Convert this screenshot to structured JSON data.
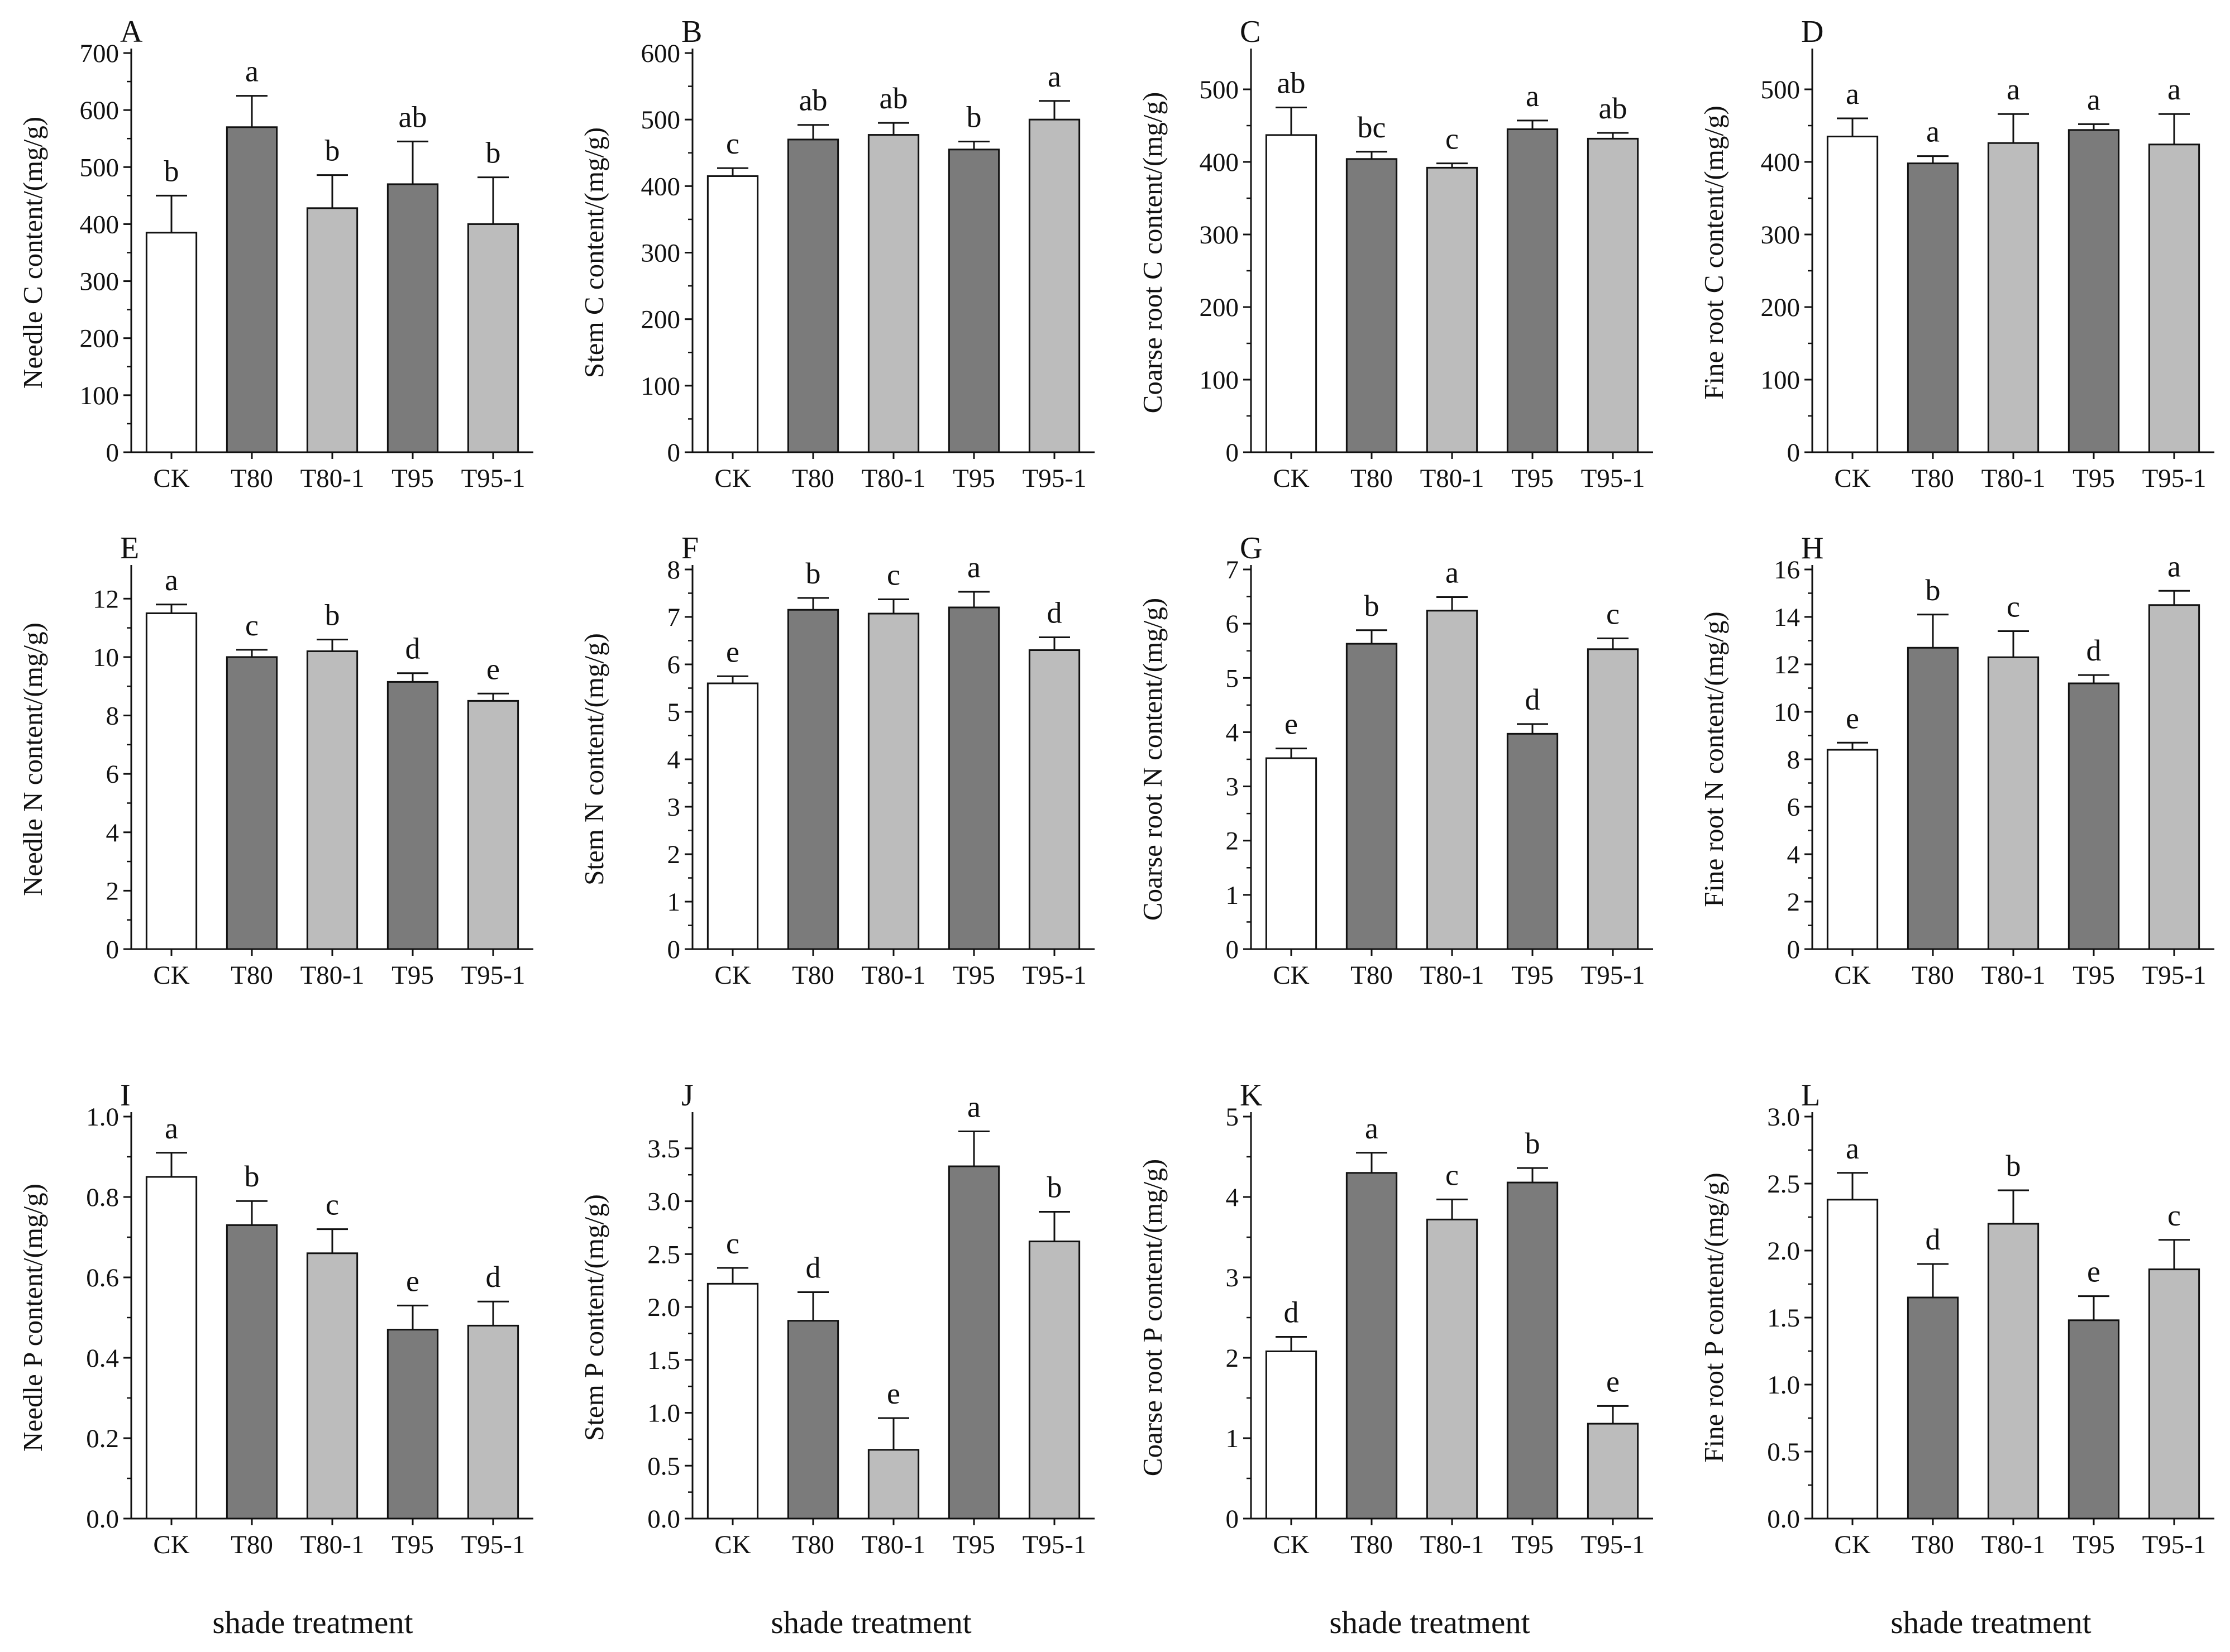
{
  "figure": {
    "bottom_labels": [
      "shade treatment",
      "shade treatment",
      "shade treatment",
      "shade treatment"
    ],
    "colors": {
      "CK": "#ffffff",
      "T80": "#7b7b7b",
      "T80-1": "#bcbcbc",
      "T95": "#7b7b7b",
      "T95-1": "#bcbcbc",
      "axis": "#111111"
    }
  },
  "chart_data": [
    {
      "panel": "A",
      "type": "bar",
      "categories": [
        "CK",
        "T80",
        "T80-1",
        "T95",
        "T95-1"
      ],
      "values": [
        385,
        570,
        428,
        470,
        400
      ],
      "errors": [
        65,
        55,
        58,
        75,
        82
      ],
      "letters": [
        "b",
        "a",
        "b",
        "ab",
        "b"
      ],
      "ylabel": "Needle C content/(mg/g)",
      "ylim": [
        0,
        700
      ],
      "yticks": [
        0,
        100,
        200,
        300,
        400,
        500,
        600,
        700
      ],
      "ytick_labels": [
        "0",
        "100",
        "200",
        "300",
        "400",
        "500",
        "600",
        "700"
      ]
    },
    {
      "panel": "B",
      "type": "bar",
      "categories": [
        "CK",
        "T80",
        "T80-1",
        "T95",
        "T95-1"
      ],
      "values": [
        415,
        470,
        477,
        455,
        500
      ],
      "errors": [
        12,
        22,
        18,
        12,
        28
      ],
      "letters": [
        "c",
        "ab",
        "ab",
        "b",
        "a"
      ],
      "ylabel": "Stem C content/(mg/g)",
      "ylim": [
        0,
        600
      ],
      "yticks": [
        0,
        100,
        200,
        300,
        400,
        500,
        600
      ],
      "ytick_labels": [
        "0",
        "100",
        "200",
        "300",
        "400",
        "500",
        "600"
      ]
    },
    {
      "panel": "C",
      "type": "bar",
      "categories": [
        "CK",
        "T80",
        "T80-1",
        "T95",
        "T95-1"
      ],
      "values": [
        437,
        404,
        392,
        445,
        432
      ],
      "errors": [
        38,
        10,
        6,
        12,
        8
      ],
      "letters": [
        "ab",
        "bc",
        "c",
        "a",
        "ab"
      ],
      "ylabel": "Coarse root C content/(mg/g)",
      "ylim": [
        0,
        550
      ],
      "yticks": [
        0,
        100,
        200,
        300,
        400,
        500
      ],
      "ytick_labels": [
        "0",
        "100",
        "200",
        "300",
        "400",
        "500"
      ]
    },
    {
      "panel": "D",
      "type": "bar",
      "categories": [
        "CK",
        "T80",
        "T80-1",
        "T95",
        "T95-1"
      ],
      "values": [
        435,
        398,
        426,
        444,
        424
      ],
      "errors": [
        25,
        10,
        40,
        8,
        42
      ],
      "letters": [
        "a",
        "a",
        "a",
        "a",
        "a"
      ],
      "ylabel": "Fine root C content/(mg/g)",
      "ylim": [
        0,
        550
      ],
      "yticks": [
        0,
        100,
        200,
        300,
        400,
        500
      ],
      "ytick_labels": [
        "0",
        "100",
        "200",
        "300",
        "400",
        "500"
      ]
    },
    {
      "panel": "E",
      "type": "bar",
      "categories": [
        "CK",
        "T80",
        "T80-1",
        "T95",
        "T95-1"
      ],
      "values": [
        11.5,
        10.0,
        10.2,
        9.15,
        8.5
      ],
      "errors": [
        0.3,
        0.25,
        0.4,
        0.3,
        0.25
      ],
      "letters": [
        "a",
        "c",
        "b",
        "d",
        "e"
      ],
      "ylabel": "Needle N content/(mg/g)",
      "ylim": [
        0,
        13
      ],
      "yticks": [
        0,
        2,
        4,
        6,
        8,
        10,
        12
      ],
      "ytick_labels": [
        "0",
        "2",
        "4",
        "6",
        "8",
        "10",
        "12"
      ]
    },
    {
      "panel": "F",
      "type": "bar",
      "categories": [
        "CK",
        "T80",
        "T80-1",
        "T95",
        "T95-1"
      ],
      "values": [
        5.6,
        7.15,
        7.07,
        7.2,
        6.3
      ],
      "errors": [
        0.15,
        0.25,
        0.3,
        0.33,
        0.27
      ],
      "letters": [
        "e",
        "b",
        "c",
        "a",
        "d"
      ],
      "ylabel": "Stem N content/(mg/g)",
      "ylim": [
        0,
        8
      ],
      "yticks": [
        0,
        1,
        2,
        3,
        4,
        5,
        6,
        7,
        8
      ],
      "ytick_labels": [
        "0",
        "1",
        "2",
        "3",
        "4",
        "5",
        "6",
        "7",
        "8"
      ]
    },
    {
      "panel": "G",
      "type": "bar",
      "categories": [
        "CK",
        "T80",
        "T80-1",
        "T95",
        "T95-1"
      ],
      "values": [
        3.52,
        5.63,
        6.24,
        3.97,
        5.53
      ],
      "errors": [
        0.18,
        0.25,
        0.25,
        0.18,
        0.2
      ],
      "letters": [
        "e",
        "b",
        "a",
        "d",
        "c"
      ],
      "ylabel": "Coarse root N content/(mg/g)",
      "ylim": [
        0,
        7
      ],
      "yticks": [
        0,
        1,
        2,
        3,
        4,
        5,
        6,
        7
      ],
      "ytick_labels": [
        "0",
        "1",
        "2",
        "3",
        "4",
        "5",
        "6",
        "7"
      ]
    },
    {
      "panel": "H",
      "type": "bar",
      "categories": [
        "CK",
        "T80",
        "T80-1",
        "T95",
        "T95-1"
      ],
      "values": [
        8.4,
        12.7,
        12.3,
        11.2,
        14.5
      ],
      "errors": [
        0.3,
        1.4,
        1.1,
        0.35,
        0.6
      ],
      "letters": [
        "e",
        "b",
        "c",
        "d",
        "a"
      ],
      "ylabel": "Fine root N content/(mg/g)",
      "ylim": [
        0,
        16
      ],
      "yticks": [
        0,
        2,
        4,
        6,
        8,
        10,
        12,
        14,
        16
      ],
      "ytick_labels": [
        "0",
        "2",
        "4",
        "6",
        "8",
        "10",
        "12",
        "14",
        "16"
      ]
    },
    {
      "panel": "I",
      "type": "bar",
      "categories": [
        "CK",
        "T80",
        "T80-1",
        "T95",
        "T95-1"
      ],
      "values": [
        0.85,
        0.73,
        0.66,
        0.47,
        0.48
      ],
      "errors": [
        0.06,
        0.06,
        0.06,
        0.06,
        0.06
      ],
      "letters": [
        "a",
        "b",
        "c",
        "e",
        "d"
      ],
      "ylabel": "Needle P content/(mg/g)",
      "ylim": [
        0,
        1.0
      ],
      "yticks": [
        0,
        0.2,
        0.4,
        0.6,
        0.8,
        1.0
      ],
      "ytick_labels": [
        "0.0",
        "0.2",
        "0.4",
        "0.6",
        "0.8",
        "1.0"
      ]
    },
    {
      "panel": "J",
      "type": "bar",
      "categories": [
        "CK",
        "T80",
        "T80-1",
        "T95",
        "T95-1"
      ],
      "values": [
        2.22,
        1.87,
        0.65,
        3.33,
        2.62
      ],
      "errors": [
        0.15,
        0.27,
        0.3,
        0.33,
        0.28
      ],
      "letters": [
        "c",
        "d",
        "e",
        "a",
        "b"
      ],
      "ylabel": "Stem P content/(mg/g)",
      "ylim": [
        0,
        3.8
      ],
      "yticks": [
        0,
        0.5,
        1.0,
        1.5,
        2.0,
        2.5,
        3.0,
        3.5
      ],
      "ytick_labels": [
        "0.0",
        "0.5",
        "1.0",
        "1.5",
        "2.0",
        "2.5",
        "3.0",
        "3.5"
      ]
    },
    {
      "panel": "K",
      "type": "bar",
      "categories": [
        "CK",
        "T80",
        "T80-1",
        "T95",
        "T95-1"
      ],
      "values": [
        2.08,
        4.3,
        3.72,
        4.18,
        1.18
      ],
      "errors": [
        0.18,
        0.25,
        0.25,
        0.18,
        0.22
      ],
      "letters": [
        "d",
        "a",
        "c",
        "b",
        "e"
      ],
      "ylabel": "Coarse root P content/(mg/g)",
      "ylim": [
        0,
        5
      ],
      "yticks": [
        0,
        1,
        2,
        3,
        4,
        5
      ],
      "ytick_labels": [
        "0",
        "1",
        "2",
        "3",
        "4",
        "5"
      ]
    },
    {
      "panel": "L",
      "type": "bar",
      "categories": [
        "CK",
        "T80",
        "T80-1",
        "T95",
        "T95-1"
      ],
      "values": [
        2.38,
        1.65,
        2.2,
        1.48,
        1.86
      ],
      "errors": [
        0.2,
        0.25,
        0.25,
        0.18,
        0.22
      ],
      "letters": [
        "a",
        "d",
        "b",
        "e",
        "c"
      ],
      "ylabel": "Fine root P content/(mg/g)",
      "ylim": [
        0,
        3.0
      ],
      "yticks": [
        0,
        0.5,
        1.0,
        1.5,
        2.0,
        2.5,
        3.0
      ],
      "ytick_labels": [
        "0.0",
        "0.5",
        "1.0",
        "1.5",
        "2.0",
        "2.5",
        "3.0"
      ]
    }
  ]
}
